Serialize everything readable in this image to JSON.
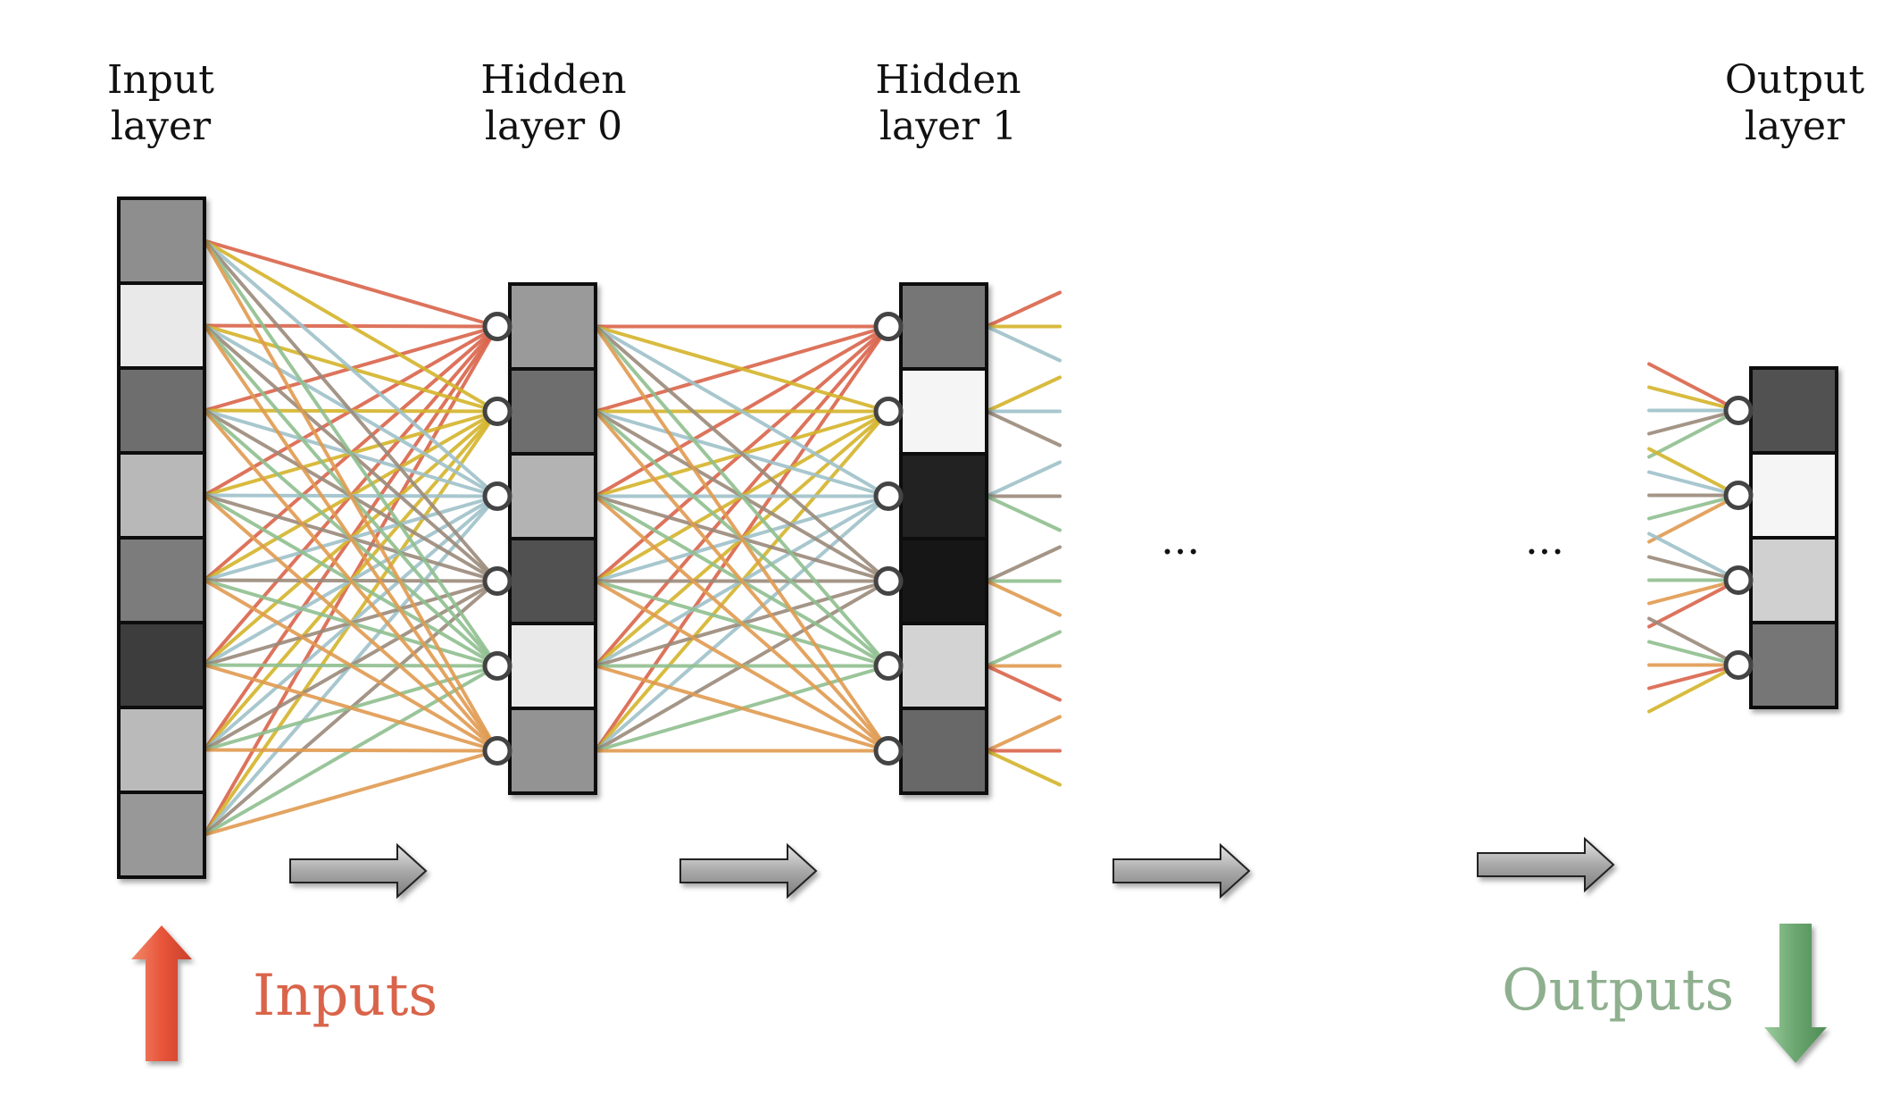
{
  "layers": [
    {
      "key": "input",
      "title_lines": [
        "Input",
        "layer"
      ],
      "units": [
        0.58,
        0.95,
        0.45,
        0.75,
        0.5,
        0.25,
        0.76,
        0.62
      ]
    },
    {
      "key": "hidden0",
      "title_lines": [
        "Hidden",
        "layer 0"
      ],
      "units": [
        0.63,
        0.45,
        0.73,
        0.33,
        0.95,
        0.6
      ]
    },
    {
      "key": "hidden1",
      "title_lines": [
        "Hidden",
        "layer 1"
      ],
      "units": [
        0.48,
        1.0,
        0.13,
        0.1,
        0.86,
        0.42
      ]
    },
    {
      "key": "output",
      "title_lines": [
        "Output",
        "layer"
      ],
      "units": [
        0.33,
        1.0,
        0.85,
        0.48
      ]
    }
  ],
  "ellipsis": [
    "...",
    "..."
  ],
  "labels": {
    "inputs": "Inputs",
    "outputs": "Outputs"
  },
  "colors": {
    "inputs_label": "#d9644a",
    "outputs_label": "#8fb08f",
    "input_arrow": "#e8553a",
    "output_arrow": "#6aa66f",
    "flow_arrow": "#a9a9a9",
    "connection_palette": [
      "#d9644a",
      "#d4b42a",
      "#9fc1c9",
      "#9a8a7a",
      "#8fbf8f",
      "#e09a50"
    ]
  }
}
